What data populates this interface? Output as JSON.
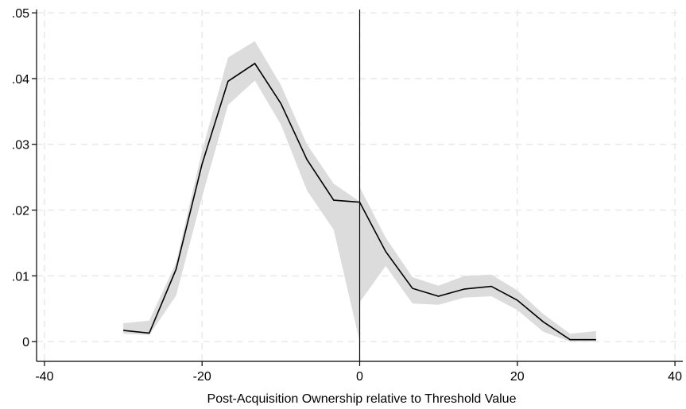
{
  "chart_data": {
    "type": "line",
    "title": "",
    "xlabel": "Post-Acquisition Ownership relative to Threshold Value",
    "ylabel": "",
    "xlim": [
      -41,
      41
    ],
    "ylim": [
      -0.003,
      0.0505
    ],
    "x_ticks": [
      -40,
      -20,
      0,
      20,
      40
    ],
    "x_tick_labels": [
      "-40",
      "-20",
      "0",
      "20",
      "40"
    ],
    "y_ticks": [
      0,
      0.01,
      0.02,
      0.03,
      0.04,
      0.05
    ],
    "y_tick_labels": [
      "0",
      ".01",
      ".02",
      ".03",
      ".04",
      ".05"
    ],
    "grid": true,
    "threshold_x": 0,
    "colors": {
      "line": "#000000",
      "band": "#dcdcdc",
      "grid": "#e9e9e9"
    },
    "segments": [
      {
        "x": [
          -30,
          -26.7,
          -23.3,
          -20,
          -16.7,
          -13.3,
          -10,
          -6.7,
          -3.3,
          0
        ],
        "y": [
          0.0017,
          0.0013,
          0.011,
          0.027,
          0.0396,
          0.0423,
          0.0362,
          0.0277,
          0.0215,
          0.0212
        ],
        "lower": [
          0.0012,
          0.001,
          0.007,
          0.022,
          0.036,
          0.0397,
          0.033,
          0.023,
          0.017,
          0.0
        ],
        "upper": [
          0.0028,
          0.0032,
          0.012,
          0.029,
          0.0432,
          0.0457,
          0.039,
          0.03,
          0.024,
          0.0213
        ]
      },
      {
        "x": [
          0,
          3.3,
          6.7,
          10,
          13.3,
          16.7,
          20,
          23.3,
          26.7,
          30
        ],
        "y": [
          0.0212,
          0.0137,
          0.0081,
          0.0069,
          0.008,
          0.0084,
          0.0063,
          0.003,
          0.0003,
          0.0003
        ],
        "lower": [
          0.006,
          0.0115,
          0.0058,
          0.0056,
          0.0067,
          0.0069,
          0.0048,
          0.0015,
          0.0,
          0.0
        ],
        "upper": [
          0.0235,
          0.0158,
          0.0098,
          0.0085,
          0.01,
          0.0102,
          0.0078,
          0.0042,
          0.0012,
          0.0016
        ]
      }
    ]
  }
}
